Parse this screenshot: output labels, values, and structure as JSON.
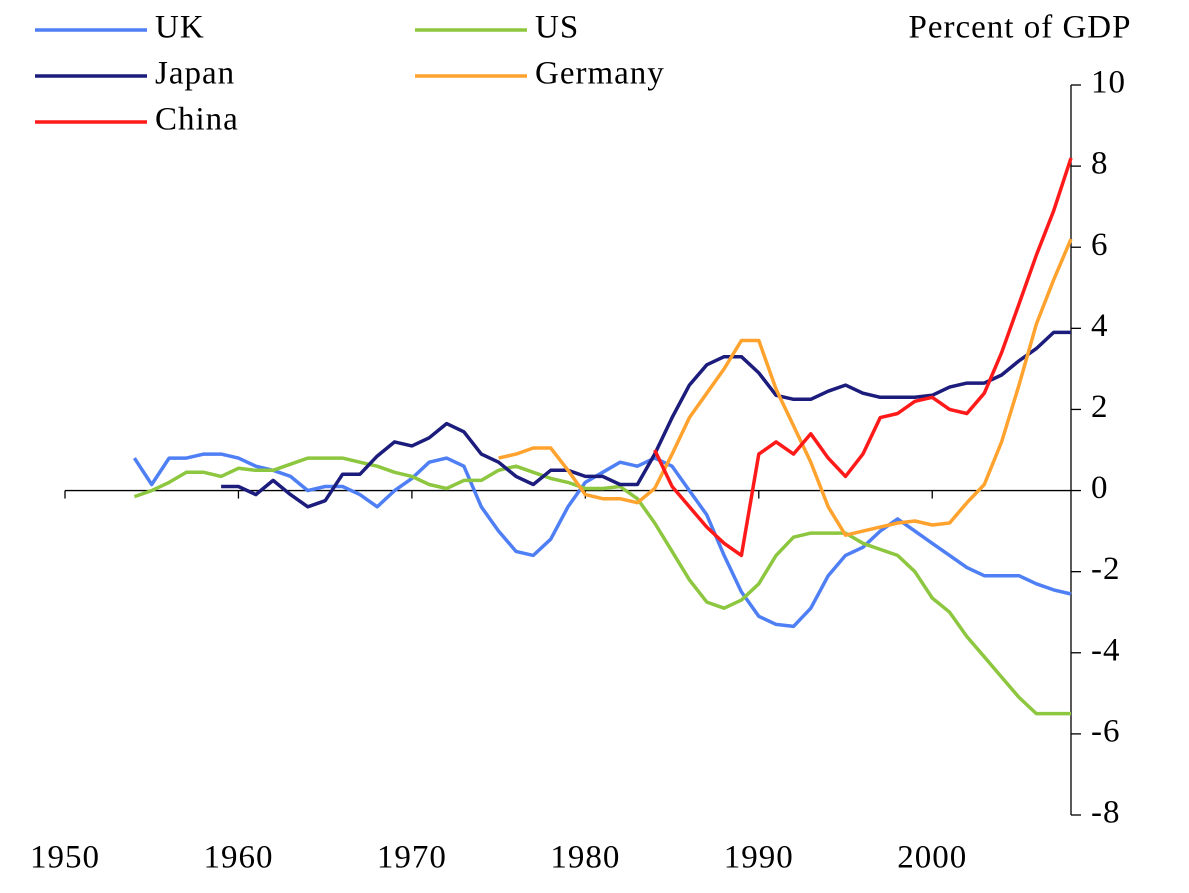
{
  "chart_data": {
    "type": "line",
    "y_label": "Percent of GDP",
    "x": [
      1954,
      1955,
      1956,
      1957,
      1958,
      1959,
      1960,
      1961,
      1962,
      1963,
      1964,
      1965,
      1966,
      1967,
      1968,
      1969,
      1970,
      1971,
      1972,
      1973,
      1974,
      1975,
      1976,
      1977,
      1978,
      1979,
      1980,
      1981,
      1982,
      1983,
      1984,
      1985,
      1986,
      1987,
      1988,
      1989,
      1990,
      1991,
      1992,
      1993,
      1994,
      1995,
      1996,
      1997,
      1998,
      1999,
      2000,
      2001,
      2002,
      2003,
      2004,
      2005,
      2006,
      2007,
      2008
    ],
    "series": [
      {
        "name": "UK",
        "color": "#4f7ff5",
        "values": [
          0.8,
          0.15,
          0.8,
          0.8,
          0.9,
          0.9,
          0.8,
          0.6,
          0.5,
          0.35,
          0.0,
          0.1,
          0.1,
          -0.1,
          -0.4,
          0.0,
          0.3,
          0.7,
          0.8,
          0.6,
          -0.4,
          -1.0,
          -1.5,
          -1.6,
          -1.2,
          -0.4,
          0.2,
          0.45,
          0.7,
          0.6,
          0.8,
          0.6,
          0.0,
          -0.6,
          -1.6,
          -2.5,
          -3.1,
          -3.3,
          -3.35,
          -2.9,
          -2.1,
          -1.6,
          -1.4,
          -1.0,
          -0.7,
          -1.0,
          -1.3,
          -1.6,
          -1.9,
          -2.1,
          -2.1,
          -2.1,
          -2.3,
          -2.45,
          -2.55
        ]
      },
      {
        "name": "US",
        "color": "#8dc63f",
        "values": [
          -0.15,
          0.0,
          0.2,
          0.45,
          0.45,
          0.35,
          0.55,
          0.5,
          0.5,
          0.65,
          0.8,
          0.8,
          0.8,
          0.7,
          0.6,
          0.45,
          0.35,
          0.15,
          0.05,
          0.25,
          0.25,
          0.5,
          0.6,
          0.45,
          0.3,
          0.2,
          0.05,
          0.05,
          0.1,
          -0.2,
          -0.8,
          -1.5,
          -2.2,
          -2.75,
          -2.9,
          -2.7,
          -2.3,
          -1.6,
          -1.15,
          -1.05,
          -1.05,
          -1.05,
          -1.3,
          -1.45,
          -1.6,
          -2.0,
          -2.65,
          -3.0,
          -3.6,
          -4.1,
          -4.6,
          -5.1,
          -5.5,
          -5.5,
          -5.5
        ]
      },
      {
        "name": "Japan",
        "color": "#1c1c7c",
        "values": [
          null,
          null,
          null,
          null,
          null,
          0.1,
          0.1,
          -0.1,
          0.25,
          -0.1,
          -0.4,
          -0.25,
          0.4,
          0.4,
          0.85,
          1.2,
          1.1,
          1.3,
          1.65,
          1.45,
          0.9,
          0.7,
          0.35,
          0.15,
          0.5,
          0.5,
          0.35,
          0.35,
          0.15,
          0.15,
          0.9,
          1.8,
          2.6,
          3.1,
          3.3,
          3.3,
          2.9,
          2.35,
          2.25,
          2.25,
          2.45,
          2.6,
          2.4,
          2.3,
          2.3,
          2.3,
          2.35,
          2.55,
          2.65,
          2.65,
          2.85,
          3.2,
          3.5,
          3.9,
          3.9
        ]
      },
      {
        "name": "Germany",
        "color": "#ffa22e",
        "values": [
          null,
          null,
          null,
          null,
          null,
          null,
          null,
          null,
          null,
          null,
          null,
          null,
          null,
          null,
          null,
          null,
          null,
          null,
          null,
          null,
          null,
          0.8,
          0.9,
          1.05,
          1.05,
          0.5,
          -0.1,
          -0.2,
          -0.2,
          -0.3,
          0.05,
          0.9,
          1.8,
          2.4,
          3.0,
          3.7,
          3.7,
          2.5,
          1.6,
          0.7,
          -0.4,
          -1.1,
          -1.0,
          -0.9,
          -0.8,
          -0.75,
          -0.85,
          -0.8,
          -0.3,
          0.15,
          1.2,
          2.6,
          4.1,
          5.2,
          6.2
        ]
      },
      {
        "name": "China",
        "color": "#ff1a1a",
        "values": [
          null,
          null,
          null,
          null,
          null,
          null,
          null,
          null,
          null,
          null,
          null,
          null,
          null,
          null,
          null,
          null,
          null,
          null,
          null,
          null,
          null,
          null,
          null,
          null,
          null,
          null,
          null,
          null,
          null,
          null,
          1.0,
          0.1,
          -0.4,
          -0.9,
          -1.3,
          -1.6,
          0.9,
          1.2,
          0.9,
          1.4,
          0.8,
          0.35,
          0.9,
          1.8,
          1.9,
          2.2,
          2.3,
          2.0,
          1.9,
          2.4,
          3.4,
          4.6,
          5.8,
          6.9,
          8.2
        ]
      }
    ],
    "xlim": [
      1950,
      2008
    ],
    "xticks": [
      1950,
      1960,
      1970,
      1980,
      1990,
      2000
    ],
    "ylim": [
      -8,
      10
    ],
    "yticks": [
      -8,
      -6,
      -4,
      -2,
      0,
      2,
      4,
      6,
      8,
      10
    ],
    "y_axis_side": "right",
    "legend_position": "top-left"
  }
}
